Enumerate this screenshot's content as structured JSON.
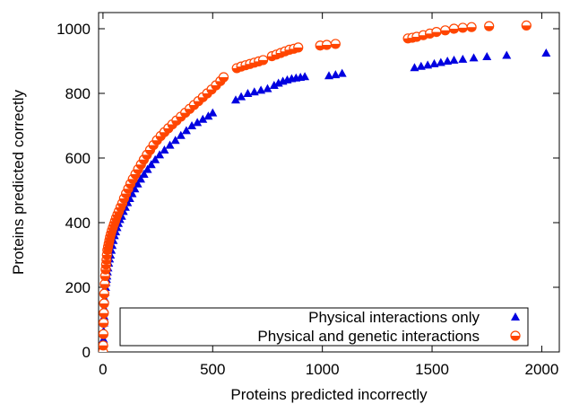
{
  "chart_data": {
    "type": "scatter",
    "xlabel": "Proteins predicted incorrectly",
    "ylabel": "Proteins predicted correctly",
    "xlim": [
      -20,
      2080
    ],
    "ylim": [
      0,
      1050
    ],
    "xticks": [
      0,
      500,
      1000,
      1500,
      2000
    ],
    "yticks": [
      0,
      200,
      400,
      600,
      800,
      1000
    ],
    "grid": false,
    "legend_position": "bottom-right",
    "series": [
      {
        "name": "Physical interactions only",
        "marker": "triangle",
        "color": "#0000e0",
        "x": [
          0,
          1,
          2,
          3,
          4,
          5,
          6,
          8,
          10,
          12,
          14,
          16,
          18,
          20,
          23,
          26,
          30,
          34,
          38,
          42,
          47,
          52,
          58,
          64,
          70,
          77,
          85,
          93,
          102,
          112,
          122,
          133,
          145,
          158,
          172,
          187,
          203,
          220,
          238,
          258,
          280,
          305,
          330,
          355,
          380,
          405,
          430,
          455,
          480,
          500,
          605,
          630,
          660,
          690,
          720,
          750,
          780,
          800,
          820,
          840,
          860,
          880,
          900,
          920,
          1030,
          1060,
          1090,
          1420,
          1450,
          1480,
          1510,
          1540,
          1570,
          1600,
          1640,
          1690,
          1750,
          1840,
          2020
        ],
        "y": [
          0,
          15,
          40,
          65,
          90,
          110,
          135,
          165,
          185,
          200,
          215,
          225,
          235,
          248,
          260,
          275,
          288,
          300,
          315,
          330,
          345,
          360,
          372,
          385,
          398,
          410,
          420,
          435,
          448,
          462,
          475,
          490,
          505,
          520,
          535,
          550,
          565,
          580,
          595,
          610,
          625,
          640,
          655,
          670,
          685,
          700,
          710,
          720,
          730,
          740,
          780,
          790,
          800,
          805,
          810,
          815,
          825,
          832,
          838,
          842,
          846,
          848,
          850,
          852,
          855,
          858,
          862,
          880,
          884,
          888,
          892,
          896,
          900,
          903,
          906,
          910,
          914,
          918,
          925
        ]
      },
      {
        "name": "Physical and genetic interactions",
        "marker": "half-circle",
        "color": "#ff4500",
        "x": [
          0,
          1,
          2,
          3,
          4,
          5,
          6,
          8,
          10,
          12,
          14,
          16,
          18,
          20,
          23,
          26,
          29,
          32,
          36,
          40,
          45,
          50,
          55,
          60,
          66,
          72,
          80,
          88,
          96,
          105,
          115,
          125,
          136,
          148,
          160,
          173,
          186,
          200,
          215,
          230,
          246,
          263,
          280,
          298,
          316,
          335,
          355,
          375,
          395,
          415,
          435,
          455,
          475,
          495,
          515,
          535,
          550,
          610,
          630,
          650,
          670,
          690,
          710,
          730,
          770,
          790,
          810,
          830,
          850,
          870,
          890,
          990,
          1020,
          1060,
          1390,
          1410,
          1430,
          1460,
          1490,
          1520,
          1560,
          1600,
          1640,
          1680,
          1760,
          1930
        ],
        "y": [
          0,
          20,
          55,
          90,
          120,
          150,
          180,
          210,
          235,
          255,
          270,
          285,
          300,
          315,
          325,
          335,
          345,
          355,
          365,
          375,
          385,
          395,
          405,
          415,
          425,
          435,
          448,
          460,
          475,
          490,
          505,
          520,
          535,
          550,
          565,
          580,
          595,
          610,
          625,
          640,
          655,
          668,
          680,
          692,
          704,
          716,
          728,
          740,
          752,
          764,
          776,
          788,
          800,
          812,
          825,
          838,
          850,
          878,
          883,
          887,
          891,
          895,
          899,
          903,
          915,
          920,
          925,
          930,
          935,
          938,
          942,
          948,
          950,
          953,
          970,
          972,
          975,
          980,
          985,
          990,
          995,
          1000,
          1003,
          1005,
          1008,
          1010
        ]
      }
    ]
  }
}
